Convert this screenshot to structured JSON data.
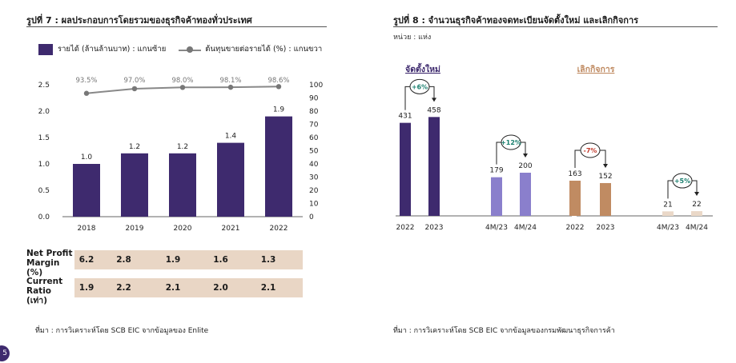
{
  "left": {
    "title": "รูปที่ 7 : ผลประกอบการโดยรวมของธุรกิจค้าทองทั่วประเทศ",
    "legend": {
      "bar_label": "รายได้ (ล้านล้านบาท) : แกนซ้าย",
      "line_label": "ต้นทุนขายต่อรายได้ (%) : แกนขวา"
    },
    "table": {
      "rows": [
        {
          "label": "Net Profit Margin (%)",
          "values": [
            "6.2",
            "2.8",
            "1.9",
            "1.6",
            "1.3"
          ]
        },
        {
          "label": "Current Ratio (เท่า)",
          "values": [
            "1.9",
            "2.2",
            "2.1",
            "2.0",
            "2.1"
          ]
        }
      ]
    },
    "source": "ที่มา : การวิเคราะห์โดย SCB EIC จากข้อมูลของ Enlite"
  },
  "right": {
    "title": "รูปที่ 8 : จำนวนธุรกิจค้าทองจดทะเบียนจัดตั้งใหม่ และเลิกกิจการ",
    "unit": "หน่วย : แห่ง",
    "source": "ที่มา : การวิเคราะห์โดย SCB EIC จากข้อมูลของกรมพัฒนาธุรกิจการค้า"
  },
  "page_number": "5",
  "colors": {
    "purple_dark": "#3e2a6e",
    "purple_light": "#8a7fcc",
    "brown": "#c08b62",
    "brown_light": "#ead8c8",
    "line_gray": "#888888",
    "negative_red": "#c0392b",
    "positive_teal": "#1a7f6e"
  },
  "chart_data": [
    {
      "type": "bar",
      "categories": [
        "2018",
        "2019",
        "2020",
        "2021",
        "2022"
      ],
      "series": [
        {
          "name": "รายได้ (ล้านล้านบาท) : แกนซ้าย",
          "type": "bar",
          "axis": "left",
          "values": [
            1.0,
            1.2,
            1.2,
            1.4,
            1.9
          ],
          "labels": [
            "1.0",
            "1.2",
            "1.2",
            "1.4",
            "1.9"
          ]
        },
        {
          "name": "ต้นทุนขายต่อรายได้ (%) : แกนขวา",
          "type": "line",
          "axis": "right",
          "values": [
            93.5,
            97.0,
            98.0,
            98.1,
            98.6
          ],
          "labels": [
            "93.5%",
            "97.0%",
            "98.0%",
            "98.1%",
            "98.6%"
          ]
        }
      ],
      "y_left": {
        "lim": [
          0,
          2.5
        ],
        "ticks": [
          "0.0",
          "0.5",
          "1.0",
          "1.5",
          "2.0",
          "2.5"
        ]
      },
      "y_right": {
        "lim": [
          0,
          100
        ],
        "ticks": [
          "0",
          "10",
          "20",
          "30",
          "40",
          "50",
          "60",
          "70",
          "80",
          "90",
          "100"
        ]
      },
      "grid": false
    },
    {
      "type": "bar",
      "groups": [
        {
          "title": "จัดตั้งใหม่",
          "bars": [
            {
              "category": "2022",
              "value": 431,
              "color": "#3e2a6e"
            },
            {
              "category": "2023",
              "value": 458,
              "color": "#3e2a6e"
            },
            {
              "category": "4M/23",
              "value": 179,
              "color": "#8a7fcc"
            },
            {
              "category": "4M/24",
              "value": 200,
              "color": "#8a7fcc"
            }
          ],
          "changes": [
            {
              "label": "+6%",
              "sign": "positive"
            },
            {
              "label": "+12%",
              "sign": "positive"
            }
          ]
        },
        {
          "title": "เลิกกิจการ",
          "bars": [
            {
              "category": "2022",
              "value": 163,
              "color": "#c08b62"
            },
            {
              "category": "2023",
              "value": 152,
              "color": "#c08b62"
            },
            {
              "category": "4M/23",
              "value": 21,
              "color": "#ead8c8"
            },
            {
              "category": "4M/24",
              "value": 22,
              "color": "#ead8c8"
            }
          ],
          "changes": [
            {
              "label": "-7%",
              "sign": "negative"
            },
            {
              "label": "+5%",
              "sign": "positive"
            }
          ]
        }
      ],
      "grid": false
    }
  ]
}
